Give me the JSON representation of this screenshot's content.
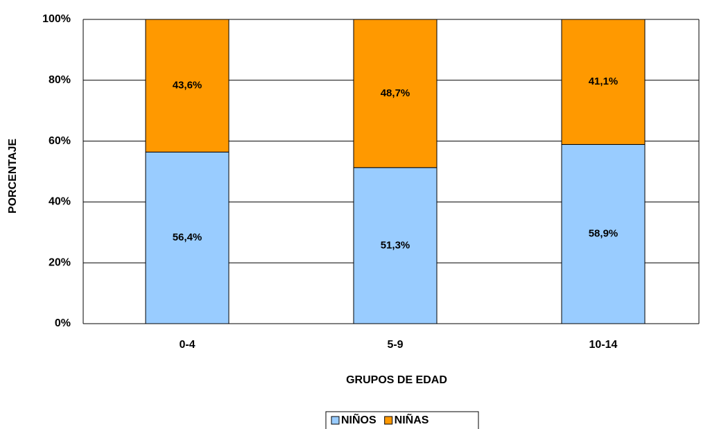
{
  "chart_data": {
    "type": "stacked_bar",
    "x_label": "GRUPOS DE EDAD",
    "y_label": "PORCENTAJE",
    "categories": [
      "0-4",
      "5-9",
      "10-14"
    ],
    "series": [
      {
        "name": "NIÑOS",
        "color": "#99ccff",
        "values": [
          56.4,
          51.3,
          58.9
        ],
        "value_labels": [
          "56,4%",
          "51,3%",
          "58,9%"
        ]
      },
      {
        "name": "NIÑAS",
        "color": "#ff9900",
        "values": [
          43.6,
          48.7,
          41.1
        ],
        "value_labels": [
          "43,6%",
          "48,7%",
          "41,1%"
        ]
      }
    ],
    "ylim": [
      0,
      100
    ],
    "yticks": [
      {
        "value": 0,
        "label": "0%"
      },
      {
        "value": 20,
        "label": "20%"
      },
      {
        "value": 40,
        "label": "40%"
      },
      {
        "value": 60,
        "label": "60%"
      },
      {
        "value": 80,
        "label": "80%"
      },
      {
        "value": 100,
        "label": "100%"
      }
    ],
    "grid": true,
    "legend": "bottom"
  }
}
